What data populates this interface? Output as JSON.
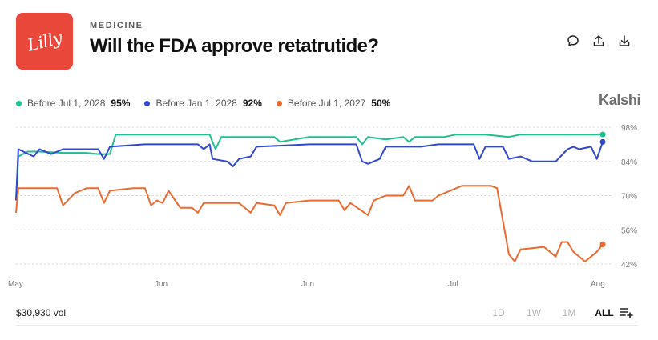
{
  "header": {
    "logo_text": "Lilly",
    "category": "MEDICINE",
    "title": "Will the FDA approve retatrutide?",
    "brand": "Kalshi"
  },
  "icons": [
    "comment-icon",
    "share-icon",
    "download-icon",
    "add-chart-icon"
  ],
  "footer": {
    "volume": "$30,930 vol",
    "ranges": [
      {
        "label": "1D",
        "active": false
      },
      {
        "label": "1W",
        "active": false
      },
      {
        "label": "1M",
        "active": false
      },
      {
        "label": "ALL",
        "active": true
      }
    ]
  },
  "chart_data": {
    "type": "line",
    "y_ticks": [
      "98%",
      "84%",
      "70%",
      "56%",
      "42%"
    ],
    "y_tick_values": [
      98,
      84,
      70,
      56,
      42
    ],
    "ylim": [
      40,
      100
    ],
    "x_ticks": [
      {
        "label": "May",
        "t": 0.0
      },
      {
        "label": "Jun",
        "t": 0.25
      },
      {
        "label": "Jun",
        "t": 0.5
      },
      {
        "label": "Jul",
        "t": 0.75
      },
      {
        "label": "Aug",
        "t": 1.0
      }
    ],
    "grid": true,
    "legend_position": "top-left",
    "series": [
      {
        "name": "Before Jul 1, 2028",
        "value_label": "95%",
        "color": "#1fbf8f",
        "points": [
          [
            0.0,
            68
          ],
          [
            0.004,
            86
          ],
          [
            0.02,
            88
          ],
          [
            0.04,
            88
          ],
          [
            0.08,
            87.5
          ],
          [
            0.12,
            87.5
          ],
          [
            0.14,
            87
          ],
          [
            0.16,
            87
          ],
          [
            0.17,
            95
          ],
          [
            0.28,
            95
          ],
          [
            0.33,
            95
          ],
          [
            0.34,
            89
          ],
          [
            0.35,
            94
          ],
          [
            0.44,
            94
          ],
          [
            0.45,
            92
          ],
          [
            0.5,
            94
          ],
          [
            0.58,
            94
          ],
          [
            0.59,
            91
          ],
          [
            0.6,
            94
          ],
          [
            0.63,
            93
          ],
          [
            0.66,
            94
          ],
          [
            0.67,
            92
          ],
          [
            0.68,
            94
          ],
          [
            0.73,
            94
          ],
          [
            0.75,
            95
          ],
          [
            0.8,
            95
          ],
          [
            0.84,
            94
          ],
          [
            0.86,
            95
          ],
          [
            0.9,
            95
          ],
          [
            0.96,
            95
          ],
          [
            1.0,
            95
          ]
        ]
      },
      {
        "name": "Before Jan 1, 2028",
        "value_label": "92%",
        "color": "#2f48cf",
        "points": [
          [
            0.0,
            68
          ],
          [
            0.004,
            89
          ],
          [
            0.03,
            86
          ],
          [
            0.04,
            89
          ],
          [
            0.06,
            87
          ],
          [
            0.08,
            89
          ],
          [
            0.14,
            89
          ],
          [
            0.15,
            85
          ],
          [
            0.16,
            90
          ],
          [
            0.22,
            91
          ],
          [
            0.31,
            91
          ],
          [
            0.32,
            89
          ],
          [
            0.33,
            91
          ],
          [
            0.335,
            85
          ],
          [
            0.36,
            84
          ],
          [
            0.37,
            82
          ],
          [
            0.38,
            85
          ],
          [
            0.4,
            86
          ],
          [
            0.41,
            90
          ],
          [
            0.5,
            91
          ],
          [
            0.58,
            91
          ],
          [
            0.59,
            84
          ],
          [
            0.6,
            83
          ],
          [
            0.62,
            85
          ],
          [
            0.63,
            90
          ],
          [
            0.69,
            90
          ],
          [
            0.72,
            91
          ],
          [
            0.78,
            91
          ],
          [
            0.79,
            85
          ],
          [
            0.8,
            90
          ],
          [
            0.83,
            90
          ],
          [
            0.84,
            85
          ],
          [
            0.86,
            86
          ],
          [
            0.88,
            84
          ],
          [
            0.92,
            84
          ],
          [
            0.94,
            89
          ],
          [
            0.95,
            90
          ],
          [
            0.96,
            89
          ],
          [
            0.98,
            90
          ],
          [
            0.99,
            85
          ],
          [
            1.0,
            92
          ]
        ]
      },
      {
        "name": "Before Jul 1, 2027",
        "value_label": "50%",
        "color": "#ea6a2f",
        "points": [
          [
            0.0,
            63
          ],
          [
            0.004,
            73
          ],
          [
            0.07,
            73
          ],
          [
            0.08,
            66
          ],
          [
            0.1,
            71
          ],
          [
            0.12,
            73
          ],
          [
            0.14,
            73
          ],
          [
            0.15,
            67
          ],
          [
            0.16,
            72
          ],
          [
            0.2,
            73
          ],
          [
            0.22,
            73
          ],
          [
            0.23,
            66
          ],
          [
            0.24,
            68
          ],
          [
            0.25,
            67
          ],
          [
            0.26,
            72
          ],
          [
            0.28,
            65
          ],
          [
            0.3,
            65
          ],
          [
            0.31,
            63
          ],
          [
            0.32,
            67
          ],
          [
            0.38,
            67
          ],
          [
            0.4,
            63
          ],
          [
            0.41,
            67
          ],
          [
            0.44,
            66
          ],
          [
            0.45,
            62
          ],
          [
            0.46,
            67
          ],
          [
            0.5,
            68
          ],
          [
            0.55,
            68
          ],
          [
            0.56,
            64
          ],
          [
            0.57,
            67
          ],
          [
            0.6,
            62
          ],
          [
            0.61,
            68
          ],
          [
            0.63,
            70
          ],
          [
            0.66,
            70
          ],
          [
            0.67,
            74
          ],
          [
            0.68,
            68
          ],
          [
            0.71,
            68
          ],
          [
            0.72,
            70
          ],
          [
            0.76,
            74
          ],
          [
            0.81,
            74
          ],
          [
            0.82,
            73
          ],
          [
            0.84,
            46
          ],
          [
            0.85,
            43
          ],
          [
            0.86,
            48
          ],
          [
            0.9,
            49
          ],
          [
            0.92,
            45
          ],
          [
            0.93,
            51
          ],
          [
            0.94,
            51
          ],
          [
            0.95,
            47
          ],
          [
            0.96,
            45
          ],
          [
            0.97,
            43
          ],
          [
            0.98,
            45
          ],
          [
            0.99,
            47
          ],
          [
            1.0,
            50
          ]
        ]
      }
    ]
  }
}
